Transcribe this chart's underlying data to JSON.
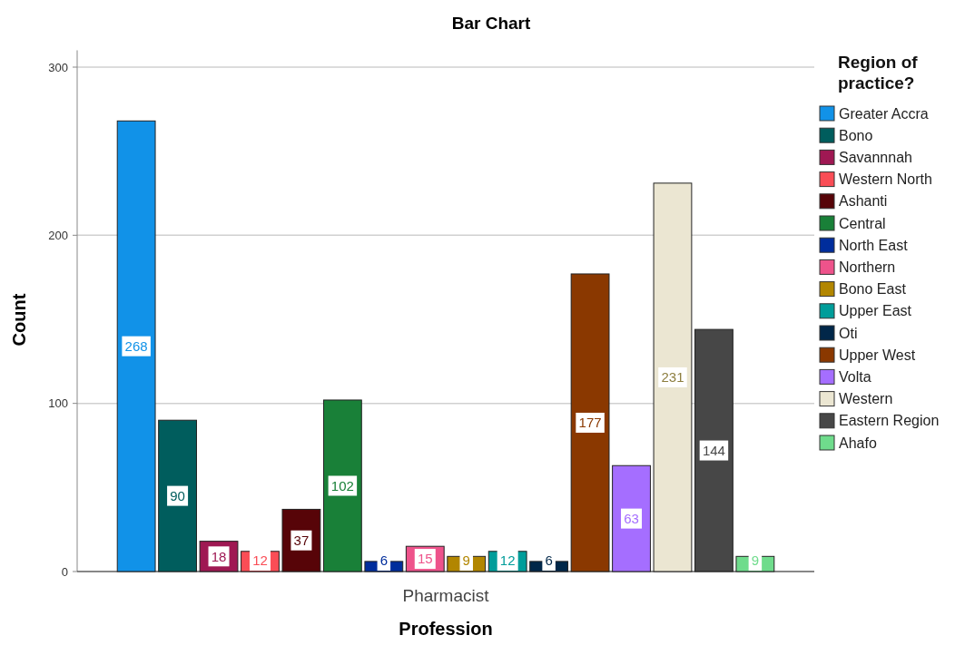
{
  "chart_data": {
    "type": "bar",
    "title": "Bar Chart",
    "xlabel": "Profession",
    "ylabel": "Count",
    "legend_title": "Region of practice?",
    "categories": [
      "Pharmacist"
    ],
    "ylim": [
      0,
      310
    ],
    "yticks": [
      0,
      100,
      200,
      300
    ],
    "grid": "y",
    "legend": "right",
    "data_labels": true,
    "series": [
      {
        "name": "Greater Accra",
        "color": "#1192e8",
        "values": [
          268
        ]
      },
      {
        "name": "Bono",
        "color": "#005d5d",
        "values": [
          90
        ]
      },
      {
        "name": "Savannnah",
        "color": "#9f1853",
        "values": [
          18
        ]
      },
      {
        "name": "Western North",
        "color": "#fa4d56",
        "values": [
          12
        ]
      },
      {
        "name": "Ashanti",
        "color": "#570408",
        "values": [
          37
        ]
      },
      {
        "name": "Central",
        "color": "#198038",
        "values": [
          102
        ]
      },
      {
        "name": "North East",
        "color": "#002d9c",
        "values": [
          6
        ]
      },
      {
        "name": "Northern",
        "color": "#ee538b",
        "values": [
          15
        ]
      },
      {
        "name": "Bono East",
        "color": "#b28600",
        "values": [
          9
        ]
      },
      {
        "name": "Upper East",
        "color": "#009d9a",
        "values": [
          12
        ]
      },
      {
        "name": "Oti",
        "color": "#012749",
        "values": [
          6
        ]
      },
      {
        "name": "Upper West",
        "color": "#8a3800",
        "values": [
          177
        ]
      },
      {
        "name": "Volta",
        "color": "#a56eff",
        "values": [
          63
        ]
      },
      {
        "name": "Western",
        "color": "#ebe6d2",
        "values": [
          231
        ]
      },
      {
        "name": "Eastern Region",
        "color": "#474747",
        "values": [
          144
        ]
      },
      {
        "name": "Ahafo",
        "color": "#6fdc8c",
        "values": [
          9
        ]
      }
    ]
  }
}
